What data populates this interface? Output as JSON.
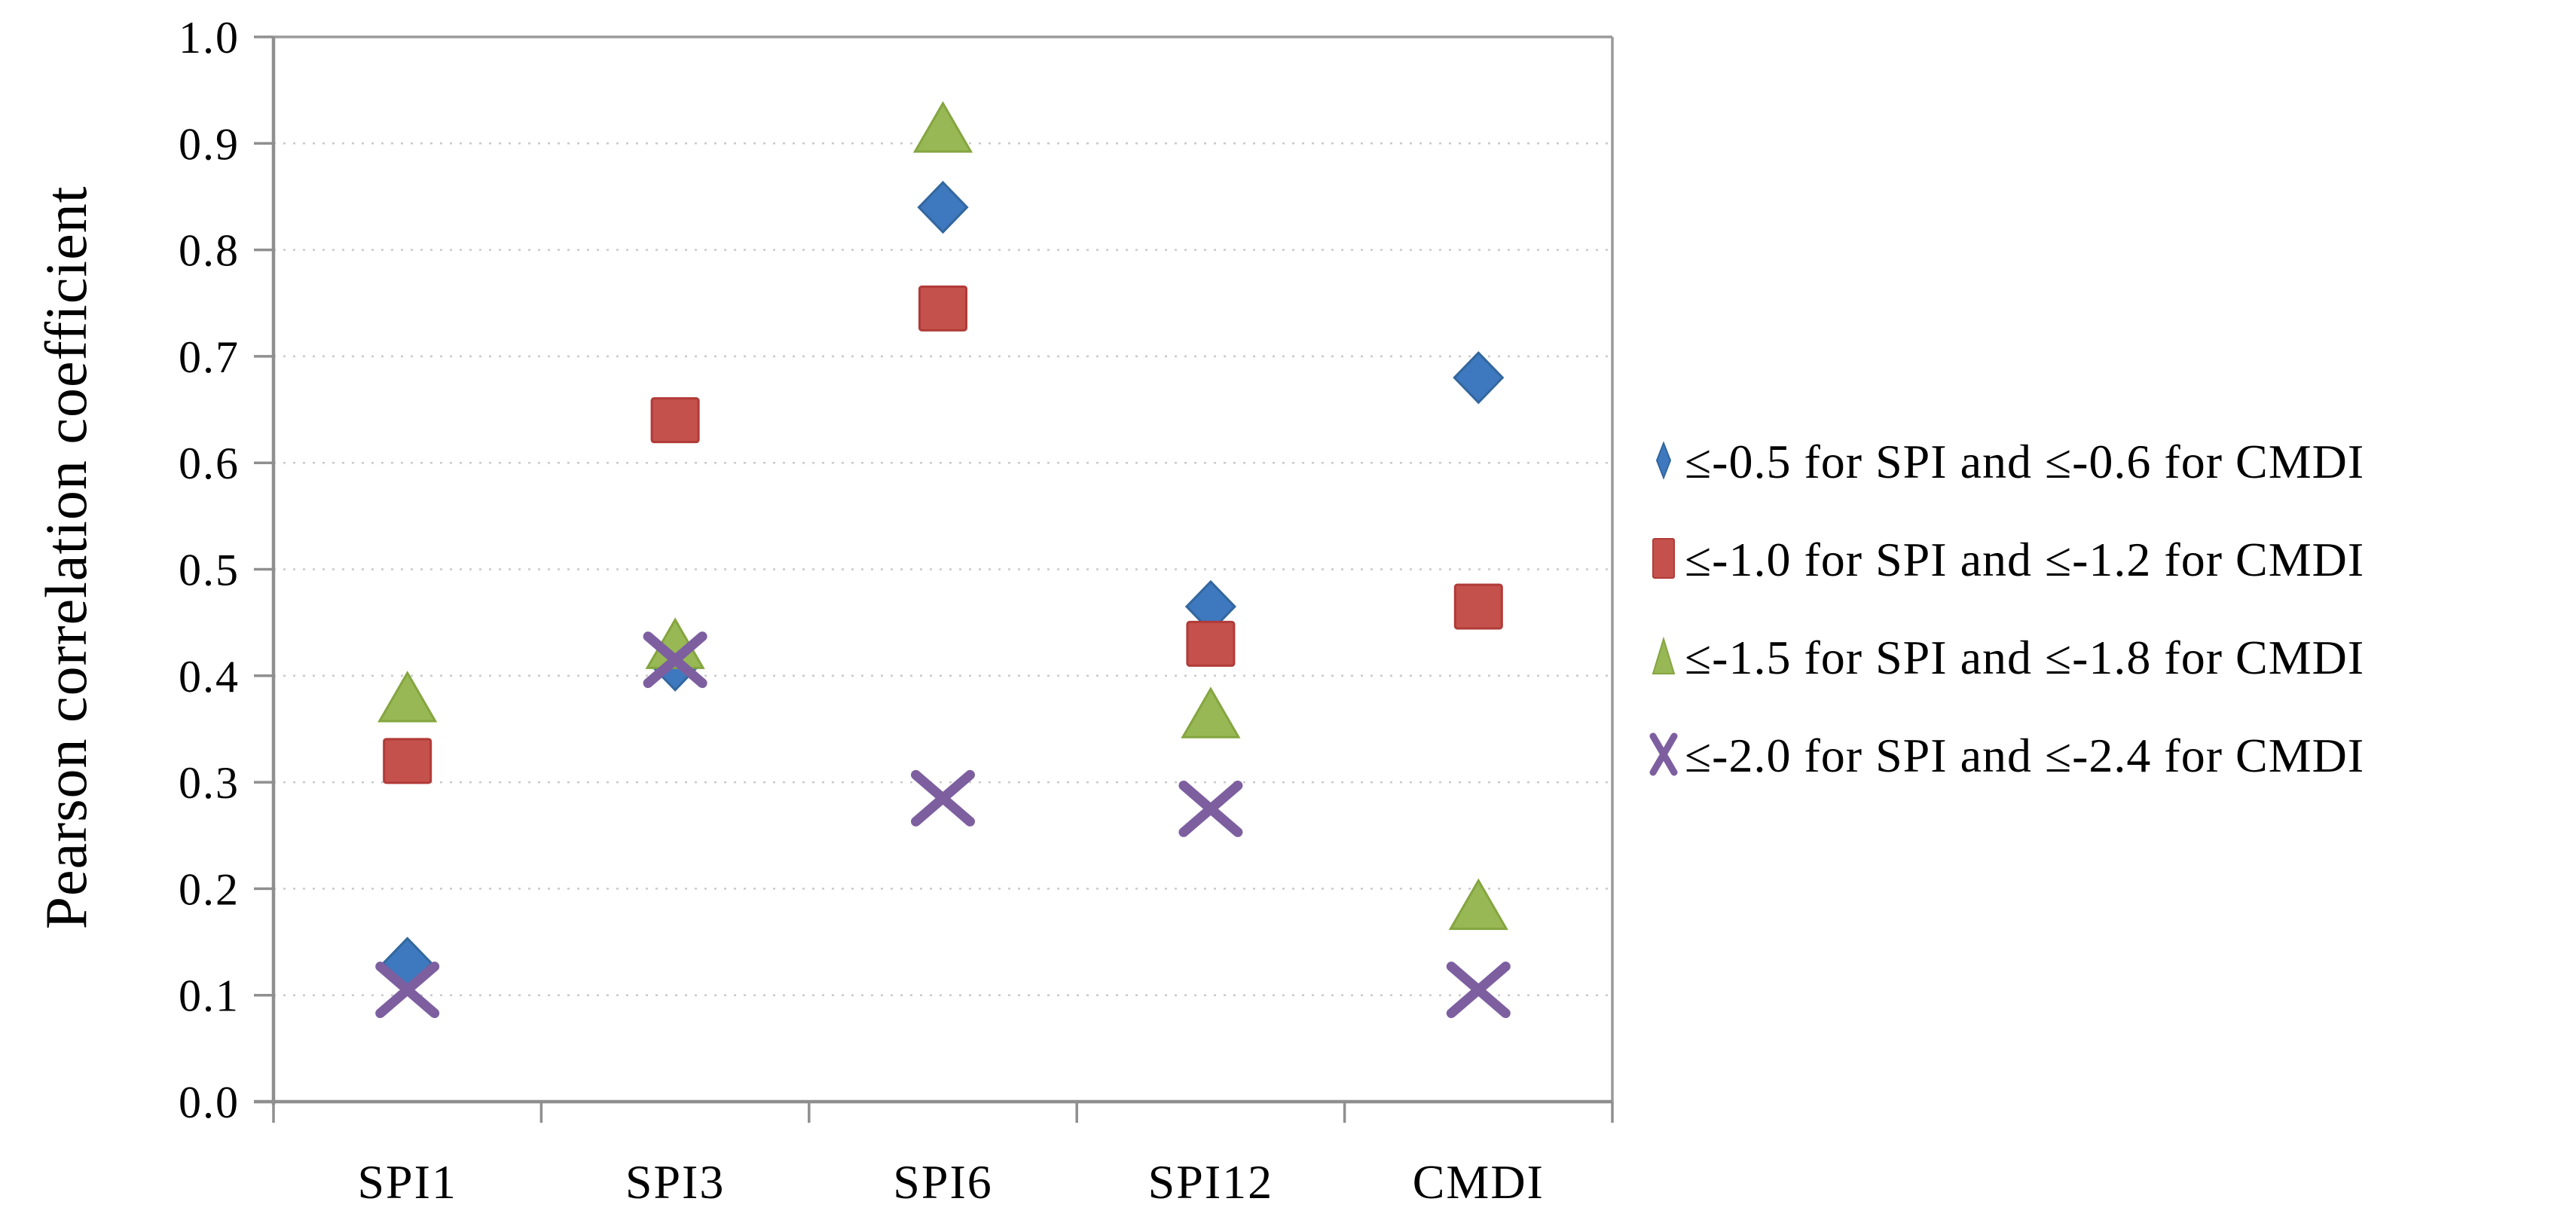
{
  "chart_data": {
    "type": "scatter",
    "title": "",
    "xlabel": "",
    "ylabel": "Pearson correlation coefficient",
    "ylim": [
      0.0,
      1.0
    ],
    "ytick_step": 0.1,
    "ytick_labels": [
      "0.0",
      "0.1",
      "0.2",
      "0.3",
      "0.4",
      "0.5",
      "0.6",
      "0.7",
      "0.8",
      "0.9",
      "1.0"
    ],
    "grid": "horizontal dotted gridlines on",
    "legend_position": "right",
    "categories": [
      "SPI1",
      "SPI3",
      "SPI6",
      "SPI12",
      "CMDI"
    ],
    "series": [
      {
        "name": "≤-0.5 for SPI and ≤-0.6 for CMDI",
        "marker": "diamond",
        "color": "#3E78BE",
        "edge_color": "#33679E",
        "values": [
          0.13,
          0.41,
          0.84,
          0.465,
          0.68
        ]
      },
      {
        "name": "≤-1.0 for SPI and ≤-1.2 for CMDI",
        "marker": "square",
        "color": "#C4514C",
        "edge_color": "#B03B38",
        "values": [
          0.32,
          0.64,
          0.745,
          0.43,
          0.465
        ]
      },
      {
        "name": "≤-1.5 for SPI and ≤-1.8 for CMDI",
        "marker": "triangle",
        "color": "#97B854",
        "edge_color": "#84A53F",
        "values": [
          0.38,
          0.43,
          0.915,
          0.365,
          0.185
        ]
      },
      {
        "name": "≤-2.0 for SPI and ≤-2.4 for CMDI",
        "marker": "x",
        "color": "#7D5FA0",
        "edge_color": "#7D5FA0",
        "values": [
          0.105,
          0.415,
          0.285,
          0.275,
          0.105
        ]
      }
    ],
    "colors": {
      "axis_line": "#8F8F8F",
      "plot_border": "#9A9A9A",
      "gridline": "#C9C9C9",
      "text": "#000000",
      "background": "#FFFFFF"
    }
  }
}
